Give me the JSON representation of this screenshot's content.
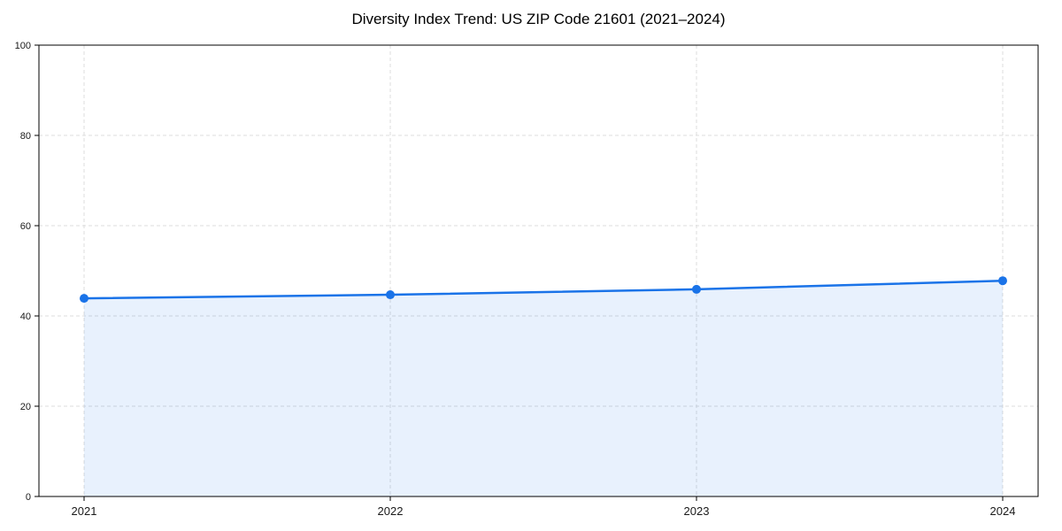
{
  "chart_data": {
    "type": "area",
    "title": "Diversity Index Trend: US ZIP Code 21601 (2021–2024)",
    "categories": [
      "2021",
      "2022",
      "2023",
      "2024"
    ],
    "values": [
      43.9,
      44.7,
      45.9,
      47.8
    ],
    "series_name": "Diversity Index",
    "xlabel": "",
    "ylabel": "",
    "ylim": [
      0,
      100
    ],
    "yticks": [
      0,
      20,
      40,
      60,
      80,
      100
    ],
    "grid": true,
    "grid_style": "dashed",
    "legend_position": "none",
    "colors": {
      "line": "#1a73e8",
      "marker": "#1a73e8",
      "fill": "#1a73e8",
      "fill_opacity": 0.1,
      "grid": "#dcdcdc",
      "axis": "#000000",
      "tick_label": "#1a1a1a",
      "title": "#000000",
      "background": "#ffffff"
    },
    "marker_radius": 5,
    "line_width": 2.5
  }
}
